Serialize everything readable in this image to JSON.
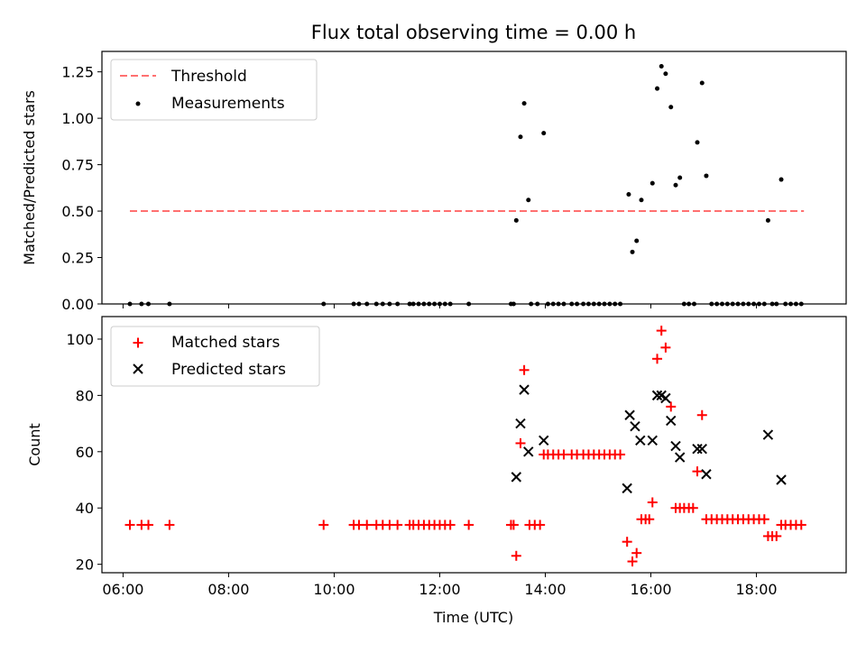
{
  "chart_data": [
    {
      "type": "scatter",
      "title": "Flux total observing time = 0.00 h",
      "xlabel": "",
      "ylabel": "Matched/Predicted stars",
      "xlim": [
        5.6,
        19.7
      ],
      "ylim": [
        0,
        1.36
      ],
      "yticks": [
        {
          "v": 0,
          "label": "0.00"
        },
        {
          "v": 0.25,
          "label": "0.25"
        },
        {
          "v": 0.5,
          "label": "0.50"
        },
        {
          "v": 0.75,
          "label": "0.75"
        },
        {
          "v": 1.0,
          "label": "1.00"
        },
        {
          "v": 1.25,
          "label": "1.25"
        }
      ],
      "xticks": [
        6,
        8,
        10,
        12,
        14,
        16,
        18
      ],
      "grid": false,
      "legend_position": "upper-left",
      "threshold": {
        "name": "Threshold",
        "value": 0.5,
        "x_start": 6.13,
        "x_end": 18.9,
        "color": "#ff7070"
      },
      "series": [
        {
          "name": "Measurements",
          "color": "#000000",
          "marker": "dot",
          "points": [
            [
              6.13,
              0
            ],
            [
              6.35,
              0
            ],
            [
              6.48,
              0
            ],
            [
              6.88,
              0
            ],
            [
              9.8,
              0
            ],
            [
              10.37,
              0
            ],
            [
              10.47,
              0
            ],
            [
              10.62,
              0
            ],
            [
              10.8,
              0
            ],
            [
              10.92,
              0
            ],
            [
              11.05,
              0
            ],
            [
              11.2,
              0
            ],
            [
              11.43,
              0
            ],
            [
              11.5,
              0
            ],
            [
              11.6,
              0
            ],
            [
              11.7,
              0
            ],
            [
              11.8,
              0
            ],
            [
              11.9,
              0
            ],
            [
              12.0,
              0
            ],
            [
              12.1,
              0
            ],
            [
              12.2,
              0
            ],
            [
              12.55,
              0
            ],
            [
              13.35,
              0
            ],
            [
              13.4,
              0
            ],
            [
              13.45,
              0.45
            ],
            [
              13.53,
              0.9
            ],
            [
              13.6,
              1.08
            ],
            [
              13.68,
              0.56
            ],
            [
              13.73,
              0
            ],
            [
              13.85,
              0
            ],
            [
              13.97,
              0.92
            ],
            [
              14.05,
              0
            ],
            [
              14.15,
              0
            ],
            [
              14.25,
              0
            ],
            [
              14.35,
              0
            ],
            [
              14.5,
              0
            ],
            [
              14.6,
              0
            ],
            [
              14.72,
              0
            ],
            [
              14.82,
              0
            ],
            [
              14.92,
              0
            ],
            [
              15.02,
              0
            ],
            [
              15.12,
              0
            ],
            [
              15.22,
              0
            ],
            [
              15.32,
              0
            ],
            [
              15.42,
              0
            ],
            [
              15.58,
              0.59
            ],
            [
              15.65,
              0.28
            ],
            [
              15.73,
              0.34
            ],
            [
              15.82,
              0.56
            ],
            [
              16.03,
              0.65
            ],
            [
              16.12,
              1.16
            ],
            [
              16.2,
              1.28
            ],
            [
              16.28,
              1.24
            ],
            [
              16.38,
              1.06
            ],
            [
              16.47,
              0.64
            ],
            [
              16.55,
              0.68
            ],
            [
              16.63,
              0
            ],
            [
              16.72,
              0
            ],
            [
              16.82,
              0
            ],
            [
              16.88,
              0.87
            ],
            [
              16.97,
              1.19
            ],
            [
              17.05,
              0.69
            ],
            [
              17.15,
              0
            ],
            [
              17.25,
              0
            ],
            [
              17.35,
              0
            ],
            [
              17.45,
              0
            ],
            [
              17.55,
              0
            ],
            [
              17.65,
              0
            ],
            [
              17.75,
              0
            ],
            [
              17.85,
              0
            ],
            [
              17.95,
              0
            ],
            [
              18.05,
              0
            ],
            [
              18.15,
              0
            ],
            [
              18.22,
              0.45
            ],
            [
              18.3,
              0
            ],
            [
              18.38,
              0
            ],
            [
              18.47,
              0.67
            ],
            [
              18.55,
              0
            ],
            [
              18.65,
              0
            ],
            [
              18.75,
              0
            ],
            [
              18.85,
              0
            ]
          ]
        }
      ]
    },
    {
      "type": "scatter",
      "title": "",
      "xlabel": "Time (UTC)",
      "ylabel": "Count",
      "xlim": [
        5.6,
        19.7
      ],
      "ylim": [
        17,
        108
      ],
      "yticks": [
        {
          "v": 20,
          "label": "20"
        },
        {
          "v": 40,
          "label": "40"
        },
        {
          "v": 60,
          "label": "60"
        },
        {
          "v": 80,
          "label": "80"
        },
        {
          "v": 100,
          "label": "100"
        }
      ],
      "xticks": [
        {
          "v": 6,
          "label": "06:00"
        },
        {
          "v": 8,
          "label": "08:00"
        },
        {
          "v": 10,
          "label": "10:00"
        },
        {
          "v": 12,
          "label": "12:00"
        },
        {
          "v": 14,
          "label": "14:00"
        },
        {
          "v": 16,
          "label": "16:00"
        },
        {
          "v": 18,
          "label": "18:00"
        }
      ],
      "grid": false,
      "legend_position": "upper-left",
      "series": [
        {
          "name": "Matched stars",
          "color": "#ff0000",
          "marker": "plus",
          "points": [
            [
              6.13,
              34
            ],
            [
              6.35,
              34
            ],
            [
              6.48,
              34
            ],
            [
              6.88,
              34
            ],
            [
              9.8,
              34
            ],
            [
              10.37,
              34
            ],
            [
              10.47,
              34
            ],
            [
              10.62,
              34
            ],
            [
              10.8,
              34
            ],
            [
              10.92,
              34
            ],
            [
              11.05,
              34
            ],
            [
              11.2,
              34
            ],
            [
              11.43,
              34
            ],
            [
              11.5,
              34
            ],
            [
              11.6,
              34
            ],
            [
              11.7,
              34
            ],
            [
              11.8,
              34
            ],
            [
              11.9,
              34
            ],
            [
              12.0,
              34
            ],
            [
              12.1,
              34
            ],
            [
              12.2,
              34
            ],
            [
              12.55,
              34
            ],
            [
              13.35,
              34
            ],
            [
              13.4,
              34
            ],
            [
              13.45,
              23
            ],
            [
              13.53,
              63
            ],
            [
              13.6,
              89
            ],
            [
              13.7,
              34
            ],
            [
              13.8,
              34
            ],
            [
              13.9,
              34
            ],
            [
              13.97,
              59
            ],
            [
              14.05,
              59
            ],
            [
              14.15,
              59
            ],
            [
              14.25,
              59
            ],
            [
              14.35,
              59
            ],
            [
              14.5,
              59
            ],
            [
              14.6,
              59
            ],
            [
              14.72,
              59
            ],
            [
              14.82,
              59
            ],
            [
              14.92,
              59
            ],
            [
              15.02,
              59
            ],
            [
              15.12,
              59
            ],
            [
              15.22,
              59
            ],
            [
              15.32,
              59
            ],
            [
              15.42,
              59
            ],
            [
              15.55,
              28
            ],
            [
              15.65,
              21
            ],
            [
              15.73,
              24
            ],
            [
              15.82,
              36
            ],
            [
              15.9,
              36
            ],
            [
              15.97,
              36
            ],
            [
              16.03,
              42
            ],
            [
              16.12,
              93
            ],
            [
              16.2,
              103
            ],
            [
              16.28,
              97
            ],
            [
              16.38,
              76
            ],
            [
              16.47,
              40
            ],
            [
              16.55,
              40
            ],
            [
              16.63,
              40
            ],
            [
              16.72,
              40
            ],
            [
              16.8,
              40
            ],
            [
              16.88,
              53
            ],
            [
              16.97,
              73
            ],
            [
              17.05,
              36
            ],
            [
              17.15,
              36
            ],
            [
              17.25,
              36
            ],
            [
              17.35,
              36
            ],
            [
              17.45,
              36
            ],
            [
              17.55,
              36
            ],
            [
              17.65,
              36
            ],
            [
              17.75,
              36
            ],
            [
              17.85,
              36
            ],
            [
              17.95,
              36
            ],
            [
              18.05,
              36
            ],
            [
              18.15,
              36
            ],
            [
              18.22,
              30
            ],
            [
              18.3,
              30
            ],
            [
              18.38,
              30
            ],
            [
              18.47,
              34
            ],
            [
              18.55,
              34
            ],
            [
              18.65,
              34
            ],
            [
              18.75,
              34
            ],
            [
              18.85,
              34
            ]
          ]
        },
        {
          "name": "Predicted stars",
          "color": "#000000",
          "marker": "x",
          "points": [
            [
              13.45,
              51
            ],
            [
              13.53,
              70
            ],
            [
              13.6,
              82
            ],
            [
              13.68,
              60
            ],
            [
              13.97,
              64
            ],
            [
              15.55,
              47
            ],
            [
              15.6,
              73
            ],
            [
              15.7,
              69
            ],
            [
              15.8,
              64
            ],
            [
              16.03,
              64
            ],
            [
              16.12,
              80
            ],
            [
              16.2,
              80
            ],
            [
              16.28,
              79
            ],
            [
              16.38,
              71
            ],
            [
              16.47,
              62
            ],
            [
              16.55,
              58
            ],
            [
              16.88,
              61
            ],
            [
              16.97,
              61
            ],
            [
              17.05,
              52
            ],
            [
              18.22,
              66
            ],
            [
              18.47,
              50
            ]
          ]
        }
      ]
    }
  ]
}
